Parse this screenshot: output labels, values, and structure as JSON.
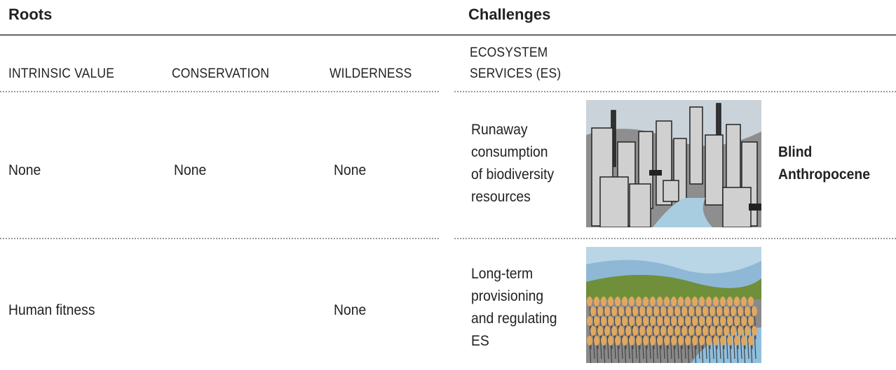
{
  "header": {
    "roots": "Roots",
    "challenges": "Challenges"
  },
  "table": {
    "columns": {
      "intrinsic": [
        "INTRINSIC VALUE"
      ],
      "conservation": [
        "CONSERVATION"
      ],
      "wilderness": [
        "WILDERNESS"
      ],
      "es": [
        "ECOSYSTEM",
        "SERVICES (ES)"
      ]
    },
    "rows": [
      {
        "intrinsic": "None",
        "conservation": "None",
        "wilderness": "None",
        "es": [
          "Runaway",
          "consumption",
          "of biodiversity",
          "resources"
        ],
        "outcome": [
          "Blind",
          "Anthropocene"
        ]
      },
      {
        "intrinsic": "Human fitness",
        "wilderness": "None",
        "es": [
          "Long-term",
          "provisioning",
          "and regulating",
          "ES"
        ]
      }
    ]
  }
}
